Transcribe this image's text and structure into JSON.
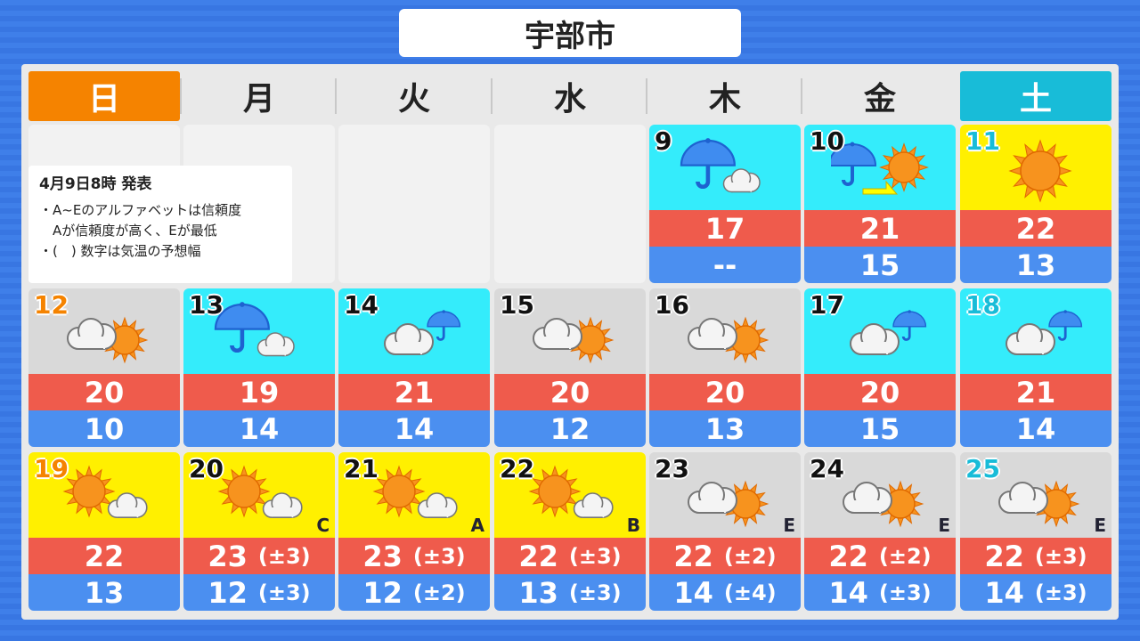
{
  "title": "宇部市",
  "weekdays": [
    "日",
    "月",
    "火",
    "水",
    "木",
    "金",
    "土"
  ],
  "colors": {
    "sunday": "#f58300",
    "saturday": "#18bcd8",
    "sunny": "#fff000",
    "rain": "#34ecfb",
    "cloudy": "#d9d9d9",
    "high": "#ef5b4c",
    "low": "#4b8ff0"
  },
  "note": {
    "issued": "4月9日8時 発表",
    "line1": "・A~Eのアルファベットは信頼度",
    "line2": "　Aが信頼度が高く、Eが最低",
    "line3": "・(　) 数字は気温の予想幅"
  },
  "days": [
    {
      "day": "9",
      "icon": "rain-cloud",
      "bg": "rain",
      "high": "17",
      "low": "--"
    },
    {
      "day": "10",
      "icon": "rain-then-sun",
      "bg": "rain",
      "high": "21",
      "low": "15"
    },
    {
      "day": "11",
      "icon": "sun",
      "bg": "sunny",
      "high": "22",
      "low": "13"
    },
    {
      "day": "12",
      "icon": "cloud-sun",
      "bg": "cloudy",
      "high": "20",
      "low": "10"
    },
    {
      "day": "13",
      "icon": "rain-cloud",
      "bg": "rain",
      "high": "19",
      "low": "14"
    },
    {
      "day": "14",
      "icon": "cloud-rain",
      "bg": "rain",
      "high": "21",
      "low": "14"
    },
    {
      "day": "15",
      "icon": "cloud-sun",
      "bg": "cloudy",
      "high": "20",
      "low": "12"
    },
    {
      "day": "16",
      "icon": "cloud-sun",
      "bg": "cloudy",
      "high": "20",
      "low": "13"
    },
    {
      "day": "17",
      "icon": "cloud-rain",
      "bg": "rain",
      "high": "20",
      "low": "15"
    },
    {
      "day": "18",
      "icon": "cloud-rain",
      "bg": "rain",
      "high": "21",
      "low": "14"
    },
    {
      "day": "19",
      "icon": "sun-cloud",
      "bg": "sunny",
      "high": "22",
      "low": "13"
    },
    {
      "day": "20",
      "icon": "sun-cloud",
      "bg": "sunny",
      "high": "23",
      "high_range": "(±3)",
      "low": "12",
      "low_range": "(±3)",
      "confidence": "C"
    },
    {
      "day": "21",
      "icon": "sun-cloud",
      "bg": "sunny",
      "high": "23",
      "high_range": "(±3)",
      "low": "12",
      "low_range": "(±2)",
      "confidence": "A"
    },
    {
      "day": "22",
      "icon": "sun-cloud",
      "bg": "sunny",
      "high": "22",
      "high_range": "(±3)",
      "low": "13",
      "low_range": "(±3)",
      "confidence": "B"
    },
    {
      "day": "23",
      "icon": "cloud-sun",
      "bg": "cloudy",
      "high": "22",
      "high_range": "(±2)",
      "low": "14",
      "low_range": "(±4)",
      "confidence": "E"
    },
    {
      "day": "24",
      "icon": "cloud-sun",
      "bg": "cloudy",
      "high": "22",
      "high_range": "(±2)",
      "low": "14",
      "low_range": "(±3)",
      "confidence": "E"
    },
    {
      "day": "25",
      "icon": "cloud-sun",
      "bg": "cloudy",
      "high": "22",
      "high_range": "(±3)",
      "low": "14",
      "low_range": "(±3)",
      "confidence": "E"
    }
  ]
}
